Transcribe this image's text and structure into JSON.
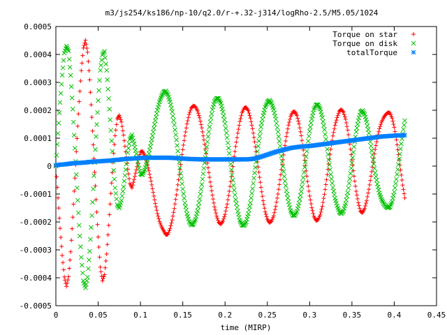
{
  "chart_data": {
    "type": "scatter",
    "title": "m3/js254/ks186/np-10/q2.0/r-+.32-j314/logRho-2.5/M5.05/1024",
    "xlabel": "time (MIRP)",
    "ylabel": "",
    "xlim": [
      0,
      0.45
    ],
    "ylim": [
      -0.0005,
      0.0005
    ],
    "grid": false,
    "legend_position": "top-right",
    "x_ticks": [
      "0",
      "0.05",
      "0.1",
      "0.15",
      "0.2",
      "0.25",
      "0.3",
      "0.35",
      "0.4",
      "0.45"
    ],
    "y_ticks": [
      "-0.0005",
      "-0.0004",
      "-0.0003",
      "-0.0002",
      "-0.0001",
      "0",
      "0.0001",
      "0.0002",
      "0.0003",
      "0.0004",
      "0.0005"
    ],
    "series": [
      {
        "name": "Torque on star",
        "marker": "plus",
        "color": "#ff0000",
        "x": [
          0,
          0.0025,
          0.005,
          0.0075,
          0.01,
          0.0125,
          0.015,
          0.0175,
          0.02,
          0.0225,
          0.025,
          0.0275,
          0.03,
          0.0325,
          0.035,
          0.0375,
          0.04,
          0.0425,
          0.045,
          0.0475,
          0.05,
          0.0525,
          0.055,
          0.0575,
          0.06,
          0.0625,
          0.065,
          0.0675,
          0.07,
          0.0725,
          0.075,
          0.0775,
          0.08,
          0.0825,
          0.085,
          0.0875,
          0.09,
          0.0925,
          0.095,
          0.0975,
          0.1,
          0.1025,
          0.105,
          0.1075,
          0.11,
          0.1125,
          0.115,
          0.1175,
          0.12,
          0.1225,
          0.125,
          0.1275,
          0.13,
          0.1325,
          0.135,
          0.1375,
          0.14,
          0.1425,
          0.145,
          0.1475,
          0.15,
          0.1525,
          0.155,
          0.1575,
          0.16,
          0.1625,
          0.165,
          0.1675,
          0.17,
          0.1725,
          0.175,
          0.1775,
          0.18,
          0.1825,
          0.185,
          0.1875,
          0.19,
          0.1925,
          0.195,
          0.1975,
          0.2,
          0.2025,
          0.205,
          0.2075,
          0.21,
          0.2125,
          0.215,
          0.2175,
          0.22,
          0.2225,
          0.225,
          0.2275,
          0.23,
          0.2325,
          0.235,
          0.2375,
          0.24,
          0.2425,
          0.245,
          0.2475,
          0.25,
          0.2525,
          0.255,
          0.2575,
          0.26,
          0.2625,
          0.265,
          0.2675,
          0.27,
          0.2725,
          0.275,
          0.2775,
          0.28,
          0.2825,
          0.285,
          0.2875,
          0.29,
          0.2925,
          0.295,
          0.2975,
          0.3,
          0.3025,
          0.305,
          0.3075,
          0.31,
          0.3125,
          0.315,
          0.3175,
          0.32,
          0.3225,
          0.325,
          0.3275,
          0.33,
          0.3325,
          0.335,
          0.3375,
          0.34,
          0.3425,
          0.345,
          0.3475,
          0.35,
          0.3525,
          0.355,
          0.3575,
          0.36,
          0.3625,
          0.365,
          0.3675,
          0.37,
          0.3725,
          0.375,
          0.3775,
          0.38,
          0.3825,
          0.385,
          0.3875,
          0.39,
          0.3925,
          0.395,
          0.3975,
          0.4,
          0.4025,
          0.405,
          0.4075,
          0.41,
          0.4125
        ],
        "y": [
          0,
          -0.000114,
          -0.000223,
          -0.00032,
          -0.000397,
          -0.000431,
          -0.000396,
          -0.000307,
          -0.000183,
          -4.3e-05,
          9.9e-05,
          0.000231,
          0.000342,
          0.000423,
          0.000451,
          0.000408,
          0.000309,
          0.000175,
          2.7e-05,
          -0.00012,
          -0.000254,
          -0.000362,
          -0.000411,
          -0.000389,
          -0.000315,
          -0.000212,
          -9.8e-05,
          1.4e-05,
          0.000109,
          0.000169,
          0.000182,
          0.000158,
          0.000111,
          5.1e-05,
          -1.1e-05,
          -6.2e-05,
          -7.8e-05,
          -4.8e-05,
          -1.4e-05,
          2.2e-05,
          5.1e-05,
          5.3e-05,
          3.8e-05,
          1.4e-05,
          -1.7e-05,
          -5.4e-05,
          -9.4e-05,
          -0.000134,
          -0.00017,
          -0.000198,
          -0.000218,
          -0.000232,
          -0.000246,
          -0.000244,
          -0.000224,
          -0.000193,
          -0.000152,
          -0.000103,
          -4.9e-05,
          6e-06,
          5.9e-05,
          0.000108,
          0.000151,
          0.000185,
          0.000208,
          0.000216,
          0.000213,
          0.000198,
          0.000173,
          0.000137,
          9.4e-05,
          4.5e-05,
          -6e-06,
          -5.7e-05,
          -0.000104,
          -0.000146,
          -0.000179,
          -0.000202,
          -0.000208,
          -0.000197,
          -0.000173,
          -0.000136,
          -9e-05,
          -3.8e-05,
          1.7e-05,
          7e-05,
          0.000118,
          0.00016,
          0.000191,
          0.000208,
          0.00021,
          0.000199,
          0.000172,
          0.000134,
          8.7e-05,
          3.4e-05,
          -2.2e-05,
          -7.6e-05,
          -0.000124,
          -0.000164,
          -0.00019,
          -0.000203,
          -0.000197,
          -0.000178,
          -0.000144,
          -0.0001,
          -4.9e-05,
          5e-06,
          5.8e-05,
          0.000106,
          0.000147,
          0.000178,
          0.000194,
          0.000195,
          0.000181,
          0.000151,
          0.000109,
          5.8e-05,
          2e-06,
          -5.5e-05,
          -0.000107,
          -0.000149,
          -0.00018,
          -0.000195,
          -0.000192,
          -0.000175,
          -0.000144,
          -0.000101,
          -4.9e-05,
          7e-06,
          6e-05,
          0.000108,
          0.000146,
          0.000174,
          0.000197,
          0.000203,
          0.000193,
          0.000168,
          0.000129,
          7.9e-05,
          2.2e-05,
          -3.6e-05,
          -9e-05,
          -0.000131,
          -0.000162,
          -0.000167,
          -0.000152,
          -0.000123,
          -8.3e-05,
          -3.6e-05,
          1.3e-05,
          6e-05,
          0.000101,
          0.000134,
          0.000158,
          0.000174,
          0.000185,
          0.000192,
          0.00019,
          0.000172,
          0.000139,
          9.4e-05,
          4.1e-05,
          -1.4e-05,
          -6.8e-05,
          -0.000114
        ]
      },
      {
        "name": "Torque on disk",
        "marker": "cross",
        "color": "#00c000",
        "x": [
          0,
          0.0025,
          0.005,
          0.0075,
          0.01,
          0.0125,
          0.015,
          0.0175,
          0.02,
          0.0225,
          0.025,
          0.0275,
          0.03,
          0.0325,
          0.035,
          0.0375,
          0.04,
          0.0425,
          0.045,
          0.0475,
          0.05,
          0.0525,
          0.055,
          0.0575,
          0.06,
          0.0625,
          0.065,
          0.0675,
          0.07,
          0.0725,
          0.075,
          0.0775,
          0.08,
          0.0825,
          0.085,
          0.0875,
          0.09,
          0.0925,
          0.095,
          0.0975,
          0.1,
          0.1025,
          0.105,
          0.1075,
          0.11,
          0.1125,
          0.115,
          0.1175,
          0.12,
          0.1225,
          0.125,
          0.1275,
          0.13,
          0.1325,
          0.135,
          0.1375,
          0.14,
          0.1425,
          0.145,
          0.1475,
          0.15,
          0.1525,
          0.155,
          0.1575,
          0.16,
          0.1625,
          0.165,
          0.1675,
          0.17,
          0.1725,
          0.175,
          0.1775,
          0.18,
          0.1825,
          0.185,
          0.1875,
          0.19,
          0.1925,
          0.195,
          0.1975,
          0.2,
          0.2025,
          0.205,
          0.2075,
          0.21,
          0.2125,
          0.215,
          0.2175,
          0.22,
          0.2225,
          0.225,
          0.2275,
          0.23,
          0.2325,
          0.235,
          0.2375,
          0.24,
          0.2425,
          0.245,
          0.2475,
          0.25,
          0.2525,
          0.255,
          0.2575,
          0.26,
          0.2625,
          0.265,
          0.2675,
          0.27,
          0.2725,
          0.275,
          0.2775,
          0.28,
          0.2825,
          0.285,
          0.2875,
          0.29,
          0.2925,
          0.295,
          0.2975,
          0.3,
          0.3025,
          0.305,
          0.3075,
          0.31,
          0.3125,
          0.315,
          0.3175,
          0.32,
          0.3225,
          0.325,
          0.3275,
          0.33,
          0.3325,
          0.335,
          0.3375,
          0.34,
          0.3425,
          0.345,
          0.3475,
          0.35,
          0.3525,
          0.355,
          0.3575,
          0.36,
          0.3625,
          0.365,
          0.3675,
          0.37,
          0.3725,
          0.375,
          0.3775,
          0.38,
          0.3825,
          0.385,
          0.3875,
          0.39,
          0.3925,
          0.395,
          0.3975,
          0.4,
          0.4025,
          0.405,
          0.4075,
          0.41,
          0.4125
        ],
        "y": [
          0,
          0.000117,
          0.000228,
          0.000326,
          0.000405,
          0.00043,
          0.000412,
          0.000325,
          0.000204,
          6.4e-05,
          -7.8e-05,
          -0.000212,
          -0.000327,
          -0.000411,
          -0.000436,
          -0.000398,
          -0.000305,
          -0.000177,
          -3.4e-05,
          0.000106,
          0.000235,
          0.000343,
          0.000398,
          0.000411,
          0.000343,
          0.000242,
          0.000128,
          1.6e-05,
          -7.8e-05,
          -0.000138,
          -0.00015,
          -0.000123,
          -7.4e-05,
          -1.3e-05,
          4.8e-05,
          9.6e-05,
          0.000112,
          8e-05,
          4.4e-05,
          3e-06,
          -2.8e-05,
          -3.1e-05,
          -1.3e-05,
          1.3e-05,
          4.5e-05,
          8.2e-05,
          0.000122,
          0.000163,
          0.000201,
          0.00023,
          0.000251,
          0.000265,
          0.000269,
          0.000255,
          0.000231,
          0.000195,
          0.000148,
          9.4e-05,
          3.4e-05,
          -2.6e-05,
          -8.2e-05,
          -0.000132,
          -0.000171,
          -0.000198,
          -0.000211,
          -0.000208,
          -0.000191,
          -0.00016,
          -0.000117,
          -6.6e-05,
          -8e-06,
          5e-05,
          0.000106,
          0.000158,
          0.000202,
          0.000231,
          0.000243,
          0.000242,
          0.000225,
          0.000194,
          0.000152,
          0.000102,
          4.6e-05,
          -1.3e-05,
          -6.9e-05,
          -0.00012,
          -0.000162,
          -0.000194,
          -0.000211,
          -0.000213,
          -0.0002,
          -0.000171,
          -0.000131,
          -8.1e-05,
          -2.4e-05,
          3.4e-05,
          9e-05,
          0.00014,
          0.000181,
          0.000211,
          0.000229,
          0.000236,
          0.000225,
          0.000202,
          0.000168,
          0.000123,
          7.2e-05,
          1.7e-05,
          -3.7e-05,
          -8.7e-05,
          -0.000128,
          -0.000159,
          -0.000176,
          -0.000177,
          -0.000162,
          -0.000133,
          -9.1e-05,
          -4.1e-05,
          1.5e-05,
          7.2e-05,
          0.000125,
          0.000169,
          0.000202,
          0.000219,
          0.00022,
          0.000204,
          0.000174,
          0.000131,
          7.9e-05,
          2.3e-05,
          -3e-05,
          -7.7e-05,
          -0.000115,
          -0.000142,
          -0.000164,
          -0.000171,
          -0.00016,
          -0.000134,
          -9.5e-05,
          -4.5e-05,
          1.1e-05,
          6.9e-05,
          0.000123,
          0.000163,
          0.000193,
          0.000199,
          0.000185,
          0.000157,
          0.000118,
          7.2e-05,
          2.3e-05,
          -2.4e-05,
          -6.4e-05,
          -9.6e-05,
          -0.000119,
          -0.000134,
          -0.000144,
          -0.00015,
          -0.000146,
          -0.000127,
          -9.3e-05,
          -4.7e-05,
          6e-06,
          6.2e-05,
          0.000116,
          0.000163
        ]
      },
      {
        "name": "totalTorque",
        "marker": "star",
        "color": "#0080ff",
        "x": [
          0,
          0.005,
          0.01,
          0.015,
          0.02,
          0.025,
          0.03,
          0.035,
          0.04,
          0.045,
          0.05,
          0.055,
          0.06,
          0.065,
          0.07,
          0.075,
          0.08,
          0.085,
          0.09,
          0.095,
          0.1,
          0.105,
          0.11,
          0.115,
          0.12,
          0.125,
          0.13,
          0.135,
          0.14,
          0.145,
          0.15,
          0.155,
          0.16,
          0.165,
          0.17,
          0.175,
          0.18,
          0.185,
          0.19,
          0.195,
          0.2,
          0.205,
          0.21,
          0.215,
          0.22,
          0.225,
          0.23,
          0.235,
          0.24,
          0.245,
          0.25,
          0.255,
          0.26,
          0.265,
          0.27,
          0.275,
          0.28,
          0.285,
          0.29,
          0.295,
          0.3,
          0.305,
          0.31,
          0.315,
          0.32,
          0.325,
          0.33,
          0.335,
          0.34,
          0.345,
          0.35,
          0.355,
          0.36,
          0.365,
          0.37,
          0.375,
          0.38,
          0.385,
          0.39,
          0.395,
          0.4,
          0.405,
          0.41,
          0.4125
        ],
        "y": [
          3e-06,
          5e-06,
          6e-06,
          8e-06,
          1e-05,
          1.1e-05,
          1.2e-05,
          1.3e-05,
          1.5e-05,
          1.6e-05,
          1.7e-05,
          1.8e-05,
          1.9e-05,
          2e-05,
          2.2e-05,
          2.3e-05,
          2.5e-05,
          2.6e-05,
          2.7e-05,
          2.8e-05,
          2.9e-05,
          3e-05,
          3e-05,
          3e-05,
          3e-05,
          3e-05,
          3e-05,
          3e-05,
          2.9e-05,
          2.8e-05,
          2.7e-05,
          2.6e-05,
          2.5e-05,
          2.5e-05,
          2.4e-05,
          2.4e-05,
          2.4e-05,
          2.4e-05,
          2.4e-05,
          2.4e-05,
          2.4e-05,
          2.4e-05,
          2.4e-05,
          2.4e-05,
          2.4e-05,
          2.4e-05,
          2.5e-05,
          2.7e-05,
          3.1e-05,
          3.6e-05,
          4.1e-05,
          4.6e-05,
          5.1e-05,
          5.5e-05,
          5.9e-05,
          6.3e-05,
          6.6e-05,
          6.8e-05,
          7e-05,
          7.1e-05,
          7.2e-05,
          7.4e-05,
          7.6e-05,
          7.8e-05,
          8e-05,
          8.2e-05,
          8.4e-05,
          8.6e-05,
          8.8e-05,
          9e-05,
          9.2e-05,
          9.4e-05,
          9.6e-05,
          9.8e-05,
          0.0001,
          0.000102,
          0.000104,
          0.000106,
          0.000107,
          0.000108,
          0.000109,
          0.00011,
          0.00011,
          0.000111
        ]
      }
    ]
  }
}
